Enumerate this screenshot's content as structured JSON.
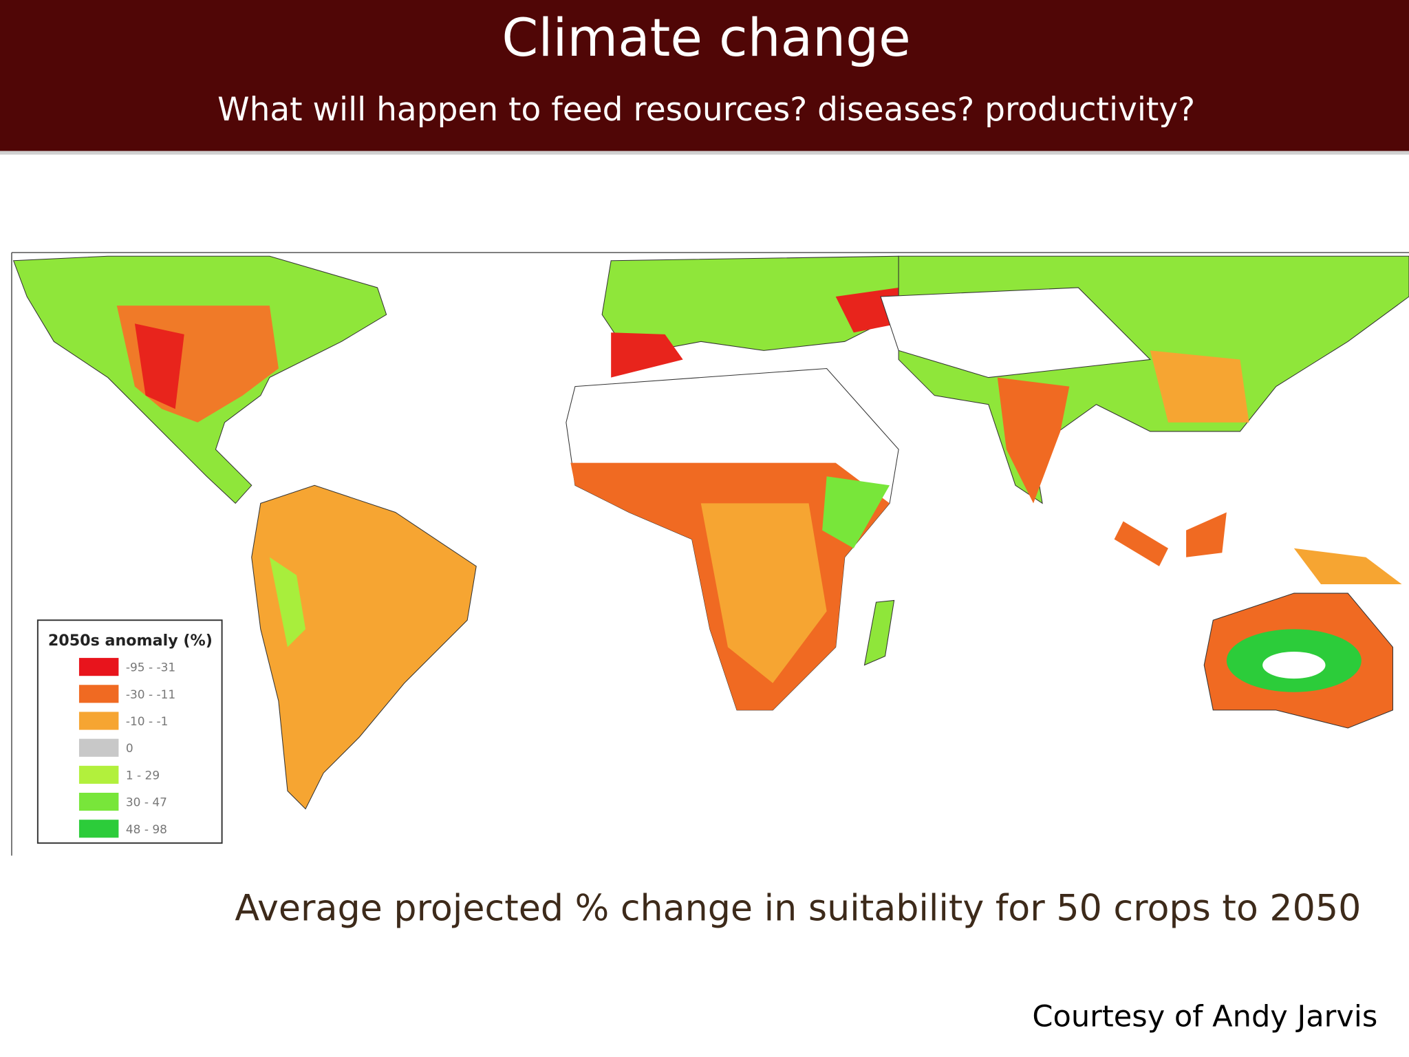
{
  "header": {
    "title": "Climate change",
    "subtitle": "What will happen to feed resources? diseases? productivity?"
  },
  "legend": {
    "title": "2050s anomaly (%)",
    "items": [
      {
        "label": "-95 - -31",
        "color": "#e8141c"
      },
      {
        "label": "-30 - -11",
        "color": "#f06a22"
      },
      {
        "label": "-10 - -1",
        "color": "#f6a532"
      },
      {
        "label": "0",
        "color": "#c8c8c8"
      },
      {
        "label": "1 - 29",
        "color": "#b2f03c"
      },
      {
        "label": "30 - 47",
        "color": "#78e63a"
      },
      {
        "label": "48 - 98",
        "color": "#2ccc3a"
      }
    ]
  },
  "caption": "Average projected % change in suitability for 50 crops to 2050",
  "credit": "Courtesy of Andy Jarvis"
}
